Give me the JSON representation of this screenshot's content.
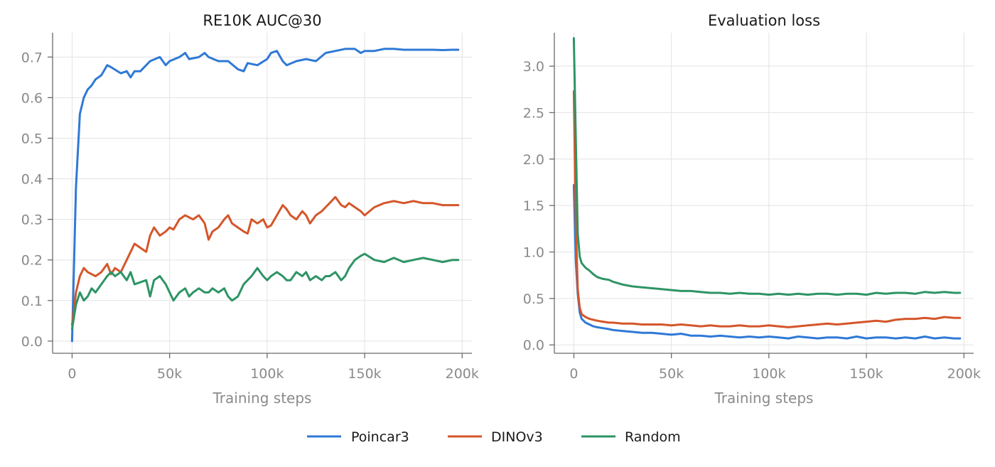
{
  "colors": {
    "poincar3": "#2f79d6",
    "dinov3": "#d4562a",
    "random": "#2e9465"
  },
  "legend": [
    {
      "label": "Poincar3",
      "color": "#2f79d6"
    },
    {
      "label": "DINOv3",
      "color": "#d4562a"
    },
    {
      "label": "Random",
      "color": "#2e9465"
    }
  ],
  "chart_data": [
    {
      "type": "line",
      "title": "RE10K AUC@30",
      "xlabel": "Training steps",
      "ylabel": "",
      "xlim": [
        -10000,
        205000
      ],
      "ylim": [
        -0.03,
        0.76
      ],
      "xticks": [
        0,
        50000,
        100000,
        150000,
        200000
      ],
      "xtick_labels": [
        "0",
        "50k",
        "100k",
        "150k",
        "200k"
      ],
      "yticks": [
        0.0,
        0.1,
        0.2,
        0.3,
        0.4,
        0.5,
        0.6,
        0.7
      ],
      "ytick_labels": [
        "0.0",
        "0.1",
        "0.2",
        "0.3",
        "0.4",
        "0.5",
        "0.6",
        "0.7"
      ],
      "grid": true,
      "series": [
        {
          "name": "Poincar3",
          "color": "#2f79d6",
          "x": [
            0,
            2000,
            4000,
            6000,
            8000,
            10000,
            12000,
            15000,
            18000,
            20000,
            25000,
            28000,
            30000,
            32000,
            35000,
            38000,
            40000,
            45000,
            48000,
            50000,
            55000,
            58000,
            60000,
            65000,
            68000,
            70000,
            75000,
            80000,
            85000,
            88000,
            90000,
            95000,
            100000,
            102000,
            105000,
            108000,
            110000,
            115000,
            120000,
            125000,
            130000,
            135000,
            140000,
            145000,
            148000,
            150000,
            155000,
            160000,
            165000,
            170000,
            175000,
            180000,
            185000,
            190000,
            195000,
            198000
          ],
          "y": [
            0.0,
            0.38,
            0.56,
            0.6,
            0.62,
            0.63,
            0.645,
            0.655,
            0.68,
            0.675,
            0.66,
            0.665,
            0.65,
            0.665,
            0.665,
            0.68,
            0.69,
            0.7,
            0.68,
            0.69,
            0.7,
            0.71,
            0.695,
            0.7,
            0.71,
            0.7,
            0.69,
            0.69,
            0.67,
            0.665,
            0.685,
            0.68,
            0.695,
            0.71,
            0.715,
            0.69,
            0.68,
            0.69,
            0.695,
            0.69,
            0.71,
            0.715,
            0.72,
            0.72,
            0.71,
            0.715,
            0.715,
            0.72,
            0.72,
            0.718,
            0.718,
            0.718,
            0.718,
            0.717,
            0.718,
            0.718
          ]
        },
        {
          "name": "DINOv3",
          "color": "#d4562a",
          "x": [
            0,
            2000,
            4000,
            6000,
            8000,
            10000,
            12000,
            15000,
            18000,
            20000,
            22000,
            25000,
            28000,
            30000,
            32000,
            35000,
            38000,
            40000,
            42000,
            45000,
            48000,
            50000,
            52000,
            55000,
            58000,
            60000,
            62000,
            65000,
            68000,
            70000,
            72000,
            75000,
            78000,
            80000,
            82000,
            85000,
            88000,
            90000,
            92000,
            95000,
            98000,
            100000,
            102000,
            105000,
            108000,
            110000,
            112000,
            115000,
            118000,
            120000,
            122000,
            125000,
            128000,
            130000,
            132000,
            135000,
            138000,
            140000,
            142000,
            145000,
            148000,
            150000,
            155000,
            160000,
            165000,
            170000,
            175000,
            180000,
            185000,
            190000,
            195000,
            198000
          ],
          "y": [
            0.04,
            0.12,
            0.16,
            0.18,
            0.17,
            0.165,
            0.16,
            0.17,
            0.19,
            0.165,
            0.18,
            0.17,
            0.2,
            0.22,
            0.24,
            0.23,
            0.22,
            0.26,
            0.28,
            0.26,
            0.27,
            0.28,
            0.275,
            0.3,
            0.31,
            0.305,
            0.3,
            0.31,
            0.29,
            0.25,
            0.27,
            0.28,
            0.3,
            0.31,
            0.29,
            0.28,
            0.27,
            0.265,
            0.3,
            0.29,
            0.3,
            0.28,
            0.285,
            0.31,
            0.335,
            0.325,
            0.31,
            0.3,
            0.32,
            0.31,
            0.29,
            0.31,
            0.32,
            0.33,
            0.34,
            0.355,
            0.335,
            0.33,
            0.34,
            0.33,
            0.32,
            0.31,
            0.33,
            0.34,
            0.345,
            0.34,
            0.345,
            0.34,
            0.34,
            0.335,
            0.335,
            0.335
          ]
        },
        {
          "name": "Random",
          "color": "#2e9465",
          "x": [
            0,
            2000,
            4000,
            6000,
            8000,
            10000,
            12000,
            15000,
            18000,
            20000,
            22000,
            25000,
            28000,
            30000,
            32000,
            35000,
            38000,
            40000,
            42000,
            45000,
            48000,
            50000,
            52000,
            55000,
            58000,
            60000,
            62000,
            65000,
            68000,
            70000,
            72000,
            75000,
            78000,
            80000,
            82000,
            85000,
            88000,
            90000,
            92000,
            95000,
            98000,
            100000,
            102000,
            105000,
            108000,
            110000,
            112000,
            115000,
            118000,
            120000,
            122000,
            125000,
            128000,
            130000,
            132000,
            135000,
            138000,
            140000,
            142000,
            145000,
            148000,
            150000,
            155000,
            160000,
            165000,
            170000,
            175000,
            180000,
            185000,
            190000,
            195000,
            198000
          ],
          "y": [
            0.03,
            0.09,
            0.12,
            0.1,
            0.11,
            0.13,
            0.12,
            0.14,
            0.16,
            0.17,
            0.16,
            0.17,
            0.15,
            0.17,
            0.14,
            0.145,
            0.15,
            0.11,
            0.15,
            0.16,
            0.14,
            0.12,
            0.1,
            0.12,
            0.13,
            0.11,
            0.12,
            0.13,
            0.12,
            0.12,
            0.13,
            0.12,
            0.13,
            0.11,
            0.1,
            0.11,
            0.14,
            0.15,
            0.16,
            0.18,
            0.16,
            0.15,
            0.16,
            0.17,
            0.16,
            0.15,
            0.15,
            0.17,
            0.16,
            0.17,
            0.15,
            0.16,
            0.15,
            0.16,
            0.16,
            0.17,
            0.15,
            0.16,
            0.18,
            0.2,
            0.21,
            0.215,
            0.2,
            0.195,
            0.205,
            0.195,
            0.2,
            0.205,
            0.2,
            0.195,
            0.2,
            0.2
          ]
        }
      ]
    },
    {
      "type": "line",
      "title": "Evaluation loss",
      "xlabel": "Training steps",
      "ylabel": "",
      "xlim": [
        -10000,
        205000
      ],
      "ylim": [
        -0.09,
        3.36
      ],
      "xticks": [
        0,
        50000,
        100000,
        150000,
        200000
      ],
      "xtick_labels": [
        "0",
        "50k",
        "100k",
        "150k",
        "200k"
      ],
      "yticks": [
        0.0,
        0.5,
        1.0,
        1.5,
        2.0,
        2.5,
        3.0
      ],
      "ytick_labels": [
        "0.0",
        "0.5",
        "1.0",
        "1.5",
        "2.0",
        "2.5",
        "3.0"
      ],
      "grid": true,
      "series": [
        {
          "name": "Poincar3",
          "color": "#2f79d6",
          "x": [
            0,
            1000,
            2000,
            3000,
            4000,
            6000,
            8000,
            10000,
            12000,
            15000,
            18000,
            20000,
            25000,
            30000,
            35000,
            40000,
            45000,
            50000,
            55000,
            60000,
            65000,
            70000,
            75000,
            80000,
            85000,
            90000,
            95000,
            100000,
            105000,
            110000,
            115000,
            120000,
            125000,
            130000,
            135000,
            140000,
            145000,
            150000,
            155000,
            160000,
            165000,
            170000,
            175000,
            180000,
            185000,
            190000,
            195000,
            198000
          ],
          "y": [
            1.72,
            0.9,
            0.55,
            0.35,
            0.28,
            0.24,
            0.22,
            0.2,
            0.19,
            0.18,
            0.17,
            0.16,
            0.15,
            0.14,
            0.13,
            0.13,
            0.12,
            0.11,
            0.12,
            0.1,
            0.1,
            0.09,
            0.1,
            0.09,
            0.08,
            0.09,
            0.08,
            0.09,
            0.08,
            0.07,
            0.09,
            0.08,
            0.07,
            0.08,
            0.08,
            0.07,
            0.09,
            0.07,
            0.08,
            0.08,
            0.07,
            0.08,
            0.07,
            0.09,
            0.07,
            0.08,
            0.07,
            0.07
          ]
        },
        {
          "name": "DINOv3",
          "color": "#d4562a",
          "x": [
            0,
            1000,
            2000,
            3000,
            4000,
            6000,
            8000,
            10000,
            12000,
            15000,
            18000,
            20000,
            25000,
            30000,
            35000,
            40000,
            45000,
            50000,
            55000,
            60000,
            65000,
            70000,
            75000,
            80000,
            85000,
            90000,
            95000,
            100000,
            105000,
            110000,
            115000,
            120000,
            125000,
            130000,
            135000,
            140000,
            145000,
            150000,
            155000,
            160000,
            165000,
            170000,
            175000,
            180000,
            185000,
            190000,
            195000,
            198000
          ],
          "y": [
            2.73,
            1.3,
            0.6,
            0.4,
            0.33,
            0.3,
            0.28,
            0.27,
            0.26,
            0.25,
            0.24,
            0.24,
            0.23,
            0.23,
            0.22,
            0.22,
            0.22,
            0.21,
            0.22,
            0.21,
            0.2,
            0.21,
            0.2,
            0.2,
            0.21,
            0.2,
            0.2,
            0.21,
            0.2,
            0.19,
            0.2,
            0.21,
            0.22,
            0.23,
            0.22,
            0.23,
            0.24,
            0.25,
            0.26,
            0.25,
            0.27,
            0.28,
            0.28,
            0.29,
            0.28,
            0.3,
            0.29,
            0.29
          ]
        },
        {
          "name": "Random",
          "color": "#2e9465",
          "x": [
            0,
            1000,
            2000,
            3000,
            4000,
            6000,
            8000,
            10000,
            12000,
            15000,
            18000,
            20000,
            25000,
            30000,
            35000,
            40000,
            45000,
            50000,
            55000,
            60000,
            65000,
            70000,
            75000,
            80000,
            85000,
            90000,
            95000,
            100000,
            105000,
            110000,
            115000,
            120000,
            125000,
            130000,
            135000,
            140000,
            145000,
            150000,
            155000,
            160000,
            165000,
            170000,
            175000,
            180000,
            185000,
            190000,
            195000,
            198000
          ],
          "y": [
            3.3,
            2.2,
            1.2,
            0.95,
            0.88,
            0.83,
            0.8,
            0.76,
            0.73,
            0.71,
            0.7,
            0.68,
            0.65,
            0.63,
            0.62,
            0.61,
            0.6,
            0.59,
            0.58,
            0.58,
            0.57,
            0.56,
            0.56,
            0.55,
            0.56,
            0.55,
            0.55,
            0.54,
            0.55,
            0.54,
            0.55,
            0.54,
            0.55,
            0.55,
            0.54,
            0.55,
            0.55,
            0.54,
            0.56,
            0.55,
            0.56,
            0.56,
            0.55,
            0.57,
            0.56,
            0.57,
            0.56,
            0.56
          ]
        }
      ]
    }
  ]
}
